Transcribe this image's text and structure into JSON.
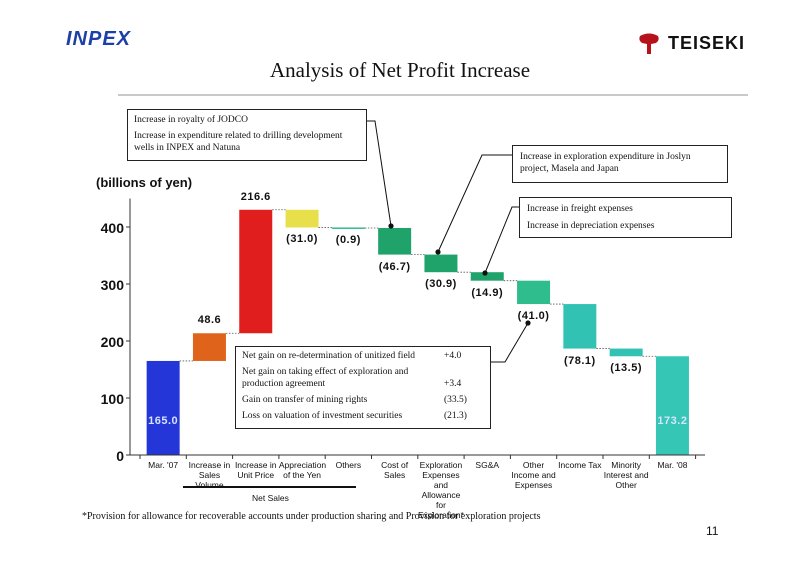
{
  "header": {
    "left_logo": "INPEX",
    "right_logo": "TEISEKI",
    "right_logo_color": "#b5121b",
    "title": "Analysis of Net Profit Increase"
  },
  "chart_data": {
    "type": "waterfall",
    "ylabel": "(billions of yen)",
    "ylim": [
      0,
      450
    ],
    "yticks": [
      "0",
      "100",
      "200",
      "300",
      "400"
    ],
    "categories": [
      "Mar. '07",
      "Increase in Sales Volume",
      "Increase in Unit Price",
      "Appreciation of the Yen",
      "Others",
      "Cost of Sales",
      "Exploration Expenses and Allowance for Exploration*",
      "SG&A",
      "Other Income and Expenses",
      "Income Tax",
      "Minority Interest and Other",
      "Mar. '08"
    ],
    "bars": [
      {
        "label": "165.0",
        "value": 165.0,
        "base": 0,
        "color": "#2536d8",
        "kind": "total"
      },
      {
        "label": "48.6",
        "value": 48.6,
        "base": 165.0,
        "color": "#e0631b",
        "kind": "increase"
      },
      {
        "label": "216.6",
        "value": 216.6,
        "base": 213.6,
        "color": "#e01e1e",
        "kind": "increase"
      },
      {
        "label": "(31.0)",
        "value": -31.0,
        "base": 430.2,
        "color": "#e8e04a",
        "kind": "decrease"
      },
      {
        "label": "(0.9)",
        "value": -0.9,
        "base": 399.2,
        "color": "#2fbd8e",
        "kind": "decrease"
      },
      {
        "label": "(46.7)",
        "value": -46.7,
        "base": 398.3,
        "color": "#1fa36a",
        "kind": "decrease"
      },
      {
        "label": "(30.9)",
        "value": -30.9,
        "base": 351.6,
        "color": "#1fa36a",
        "kind": "decrease"
      },
      {
        "label": "(14.9)",
        "value": -14.9,
        "base": 320.7,
        "color": "#1fa36a",
        "kind": "decrease"
      },
      {
        "label": "(41.0)",
        "value": -41.0,
        "base": 305.8,
        "color": "#2fbd8e",
        "kind": "decrease"
      },
      {
        "label": "(78.1)",
        "value": -78.1,
        "base": 264.8,
        "color": "#32c2b3",
        "kind": "decrease"
      },
      {
        "label": "(13.5)",
        "value": -13.5,
        "base": 186.7,
        "color": "#32c2b3",
        "kind": "decrease"
      },
      {
        "label": "173.2",
        "value": 173.2,
        "base": 0,
        "color": "#35c6b5",
        "kind": "total"
      }
    ],
    "group_label": "Net Sales",
    "grid": false
  },
  "annotations": {
    "jodco": {
      "line1": "Increase in royalty of JODCO",
      "line2": "Increase in expenditure related to drilling development wells in INPEX and Natuna"
    },
    "exploration": {
      "line1": "Increase in exploration expenditure in Joslyn project, Masela and Japan"
    },
    "sga": {
      "line1": "Increase in freight expenses",
      "line2": "Increase in depreciation expenses"
    },
    "other_income": {
      "rows": [
        {
          "text": "Net gain on re-determination of unitized field",
          "value": "+4.0"
        },
        {
          "text": "Net gain on taking effect of exploration and production agreement",
          "value": "+3.4"
        },
        {
          "text": "Gain on transfer of mining rights",
          "value": "(33.5)"
        },
        {
          "text": "Loss on valuation of investment securities",
          "value": "(21.3)"
        }
      ]
    }
  },
  "footnote": "*Provision for allowance for recoverable accounts under production sharing and Provision for exploration projects",
  "page_number": "11"
}
